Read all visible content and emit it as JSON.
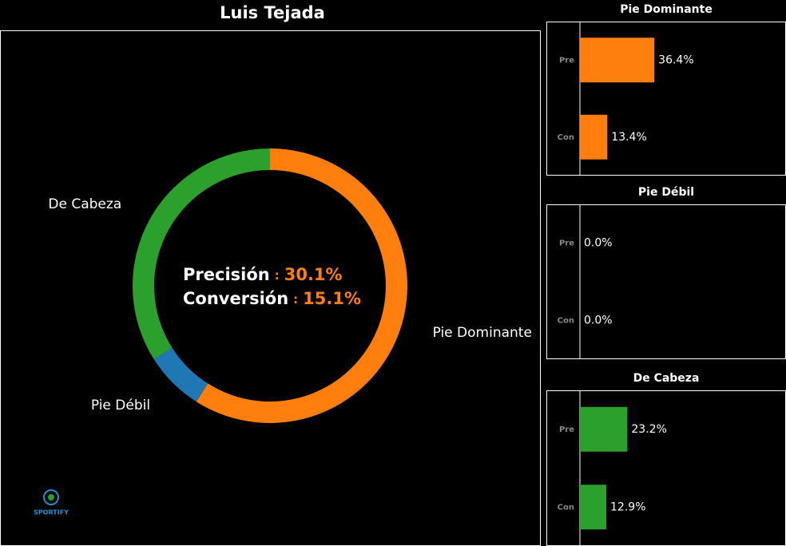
{
  "logo": "SPORTIFY",
  "chart_data": [
    {
      "type": "donut",
      "title": "Luis Tejada",
      "categories": [
        "Pie Dominante",
        "Pie Débil",
        "De Cabeza"
      ],
      "values": [
        59,
        7,
        34
      ],
      "colors": [
        "#ff7f0e",
        "#1f77b4",
        "#2ca02c"
      ],
      "separator": ":",
      "annotations": [
        {
          "label": "Precisión",
          "value": "30.1%"
        },
        {
          "label": "Conversión",
          "value": "15.1%"
        }
      ]
    },
    {
      "type": "hbar",
      "title": "Pie Dominante",
      "categories": [
        "Pre",
        "Con"
      ],
      "values": [
        36.4,
        13.4
      ],
      "value_labels": [
        "36.4%",
        "13.4%"
      ],
      "color": "#ff7f0e",
      "xlim": [
        0,
        100
      ]
    },
    {
      "type": "hbar",
      "title": "Pie Débil",
      "categories": [
        "Pre",
        "Con"
      ],
      "values": [
        0.0,
        0.0
      ],
      "value_labels": [
        "0.0%",
        "0.0%"
      ],
      "color": "#1f77b4",
      "xlim": [
        0,
        100
      ]
    },
    {
      "type": "hbar",
      "title": "De Cabeza",
      "categories": [
        "Pre",
        "Con"
      ],
      "values": [
        23.2,
        12.9
      ],
      "value_labels": [
        "23.2%",
        "12.9%"
      ],
      "color": "#2ca02c",
      "xlim": [
        0,
        100
      ]
    }
  ]
}
